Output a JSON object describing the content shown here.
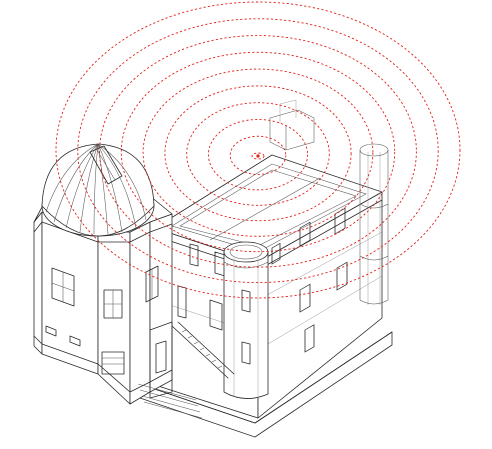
{
  "colors": {
    "linework": "#2a2a2a",
    "signal_rings": "#e0211a",
    "background": "#ffffff"
  },
  "figure": {
    "subject": "",
    "signal_ring_count": 10,
    "icons": [
      "observatory-dome",
      "tower-turret",
      "exterior-staircase",
      "signal-source-dot"
    ]
  }
}
